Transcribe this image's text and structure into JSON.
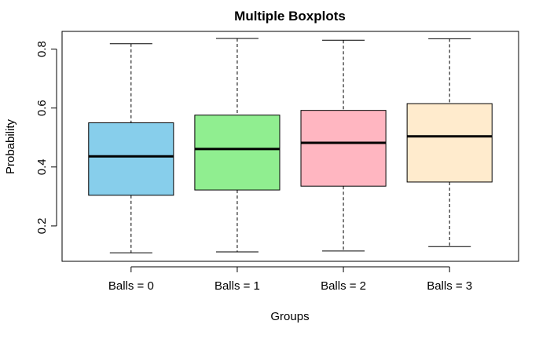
{
  "chart_data": {
    "type": "boxplot",
    "title": "Multiple Boxplots",
    "xlabel": "Groups",
    "ylabel": "Probability",
    "ylim": [
      0.08,
      0.86
    ],
    "yticks": [
      "0.2",
      "0.4",
      "0.6",
      "0.8"
    ],
    "grid": false,
    "categories": [
      "Balls = 0",
      "Balls = 1",
      "Balls = 2",
      "Balls = 3"
    ],
    "series": [
      {
        "min": 0.109,
        "q1": 0.304,
        "median": 0.436,
        "q3": 0.55,
        "max": 0.818,
        "color": "#87CEEB"
      },
      {
        "min": 0.112,
        "q1": 0.322,
        "median": 0.461,
        "q3": 0.576,
        "max": 0.836,
        "color": "#90EE90"
      },
      {
        "min": 0.115,
        "q1": 0.335,
        "median": 0.482,
        "q3": 0.592,
        "max": 0.83,
        "color": "#FFB6C1"
      },
      {
        "min": 0.13,
        "q1": 0.349,
        "median": 0.504,
        "q3": 0.615,
        "max": 0.835,
        "color": "#FFEBCD"
      }
    ]
  }
}
